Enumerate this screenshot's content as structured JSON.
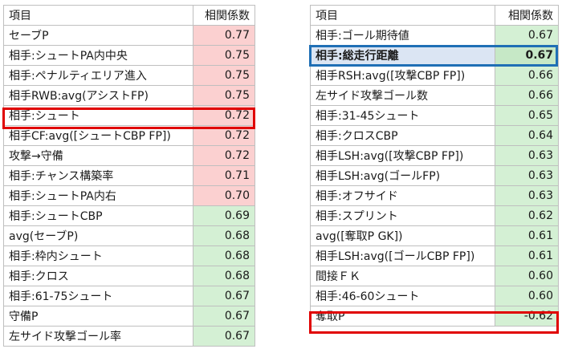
{
  "left_table": {
    "header": {
      "item": "項目",
      "value": "相関係数"
    },
    "rows": [
      {
        "label": "セーブP",
        "value": "0.77",
        "tone": "pos-hi"
      },
      {
        "label": "相手:シュートPA内中央",
        "value": "0.75",
        "tone": "pos-hi"
      },
      {
        "label": "相手:ペナルティエリア進入",
        "value": "0.75",
        "tone": "pos-hi"
      },
      {
        "label": "相手RWB:avg(アシストFP)",
        "value": "0.75",
        "tone": "pos-hi"
      },
      {
        "label": "相手:シュート",
        "value": "0.72",
        "tone": "pos-hi"
      },
      {
        "label": "相手CF:avg([シュートCBP FP])",
        "value": "0.72",
        "tone": "pos-hi"
      },
      {
        "label": "攻撃→守備",
        "value": "0.72",
        "tone": "pos-hi"
      },
      {
        "label": "相手:チャンス構築率",
        "value": "0.71",
        "tone": "pos-hi"
      },
      {
        "label": "相手:シュートPA内右",
        "value": "0.70",
        "tone": "pos-hi"
      },
      {
        "label": "相手:シュートCBP",
        "value": "0.69",
        "tone": "pos-lo"
      },
      {
        "label": "avg(セーブP)",
        "value": "0.68",
        "tone": "pos-lo"
      },
      {
        "label": "相手:枠内シュート",
        "value": "0.68",
        "tone": "pos-lo"
      },
      {
        "label": "相手:クロス",
        "value": "0.68",
        "tone": "pos-lo"
      },
      {
        "label": "相手:61-75シュート",
        "value": "0.67",
        "tone": "pos-lo"
      },
      {
        "label": "守備P",
        "value": "0.67",
        "tone": "pos-lo"
      },
      {
        "label": "左サイド攻撃ゴール率",
        "value": "0.67",
        "tone": "pos-lo"
      }
    ]
  },
  "right_table": {
    "header": {
      "item": "項目",
      "value": "相関係数"
    },
    "rows": [
      {
        "label": "相手:ゴール期待値",
        "value": "0.67",
        "tone": "pos-lo"
      },
      {
        "label": "相手:総走行距離",
        "value": "0.67",
        "tone": "pos-lo"
      },
      {
        "label": "相手RSH:avg([攻撃CBP FP])",
        "value": "0.66",
        "tone": "pos-lo"
      },
      {
        "label": "左サイド攻撃ゴール数",
        "value": "0.66",
        "tone": "pos-lo"
      },
      {
        "label": "相手:31-45シュート",
        "value": "0.65",
        "tone": "pos-lo"
      },
      {
        "label": "相手:クロスCBP",
        "value": "0.64",
        "tone": "pos-lo"
      },
      {
        "label": "相手LSH:avg([攻撃CBP FP])",
        "value": "0.63",
        "tone": "pos-lo"
      },
      {
        "label": "相手LSH:avg(ゴールFP)",
        "value": "0.63",
        "tone": "pos-lo"
      },
      {
        "label": "相手:オフサイド",
        "value": "0.63",
        "tone": "pos-lo"
      },
      {
        "label": "相手:スプリント",
        "value": "0.62",
        "tone": "pos-lo"
      },
      {
        "label": "avg([奪取P GK])",
        "value": "0.61",
        "tone": "pos-lo"
      },
      {
        "label": "相手LSH:avg([ゴールCBP FP])",
        "value": "0.61",
        "tone": "pos-lo"
      },
      {
        "label": "間接ＦＫ",
        "value": "0.60",
        "tone": "pos-lo"
      },
      {
        "label": "相手:46-60シュート",
        "value": "0.60",
        "tone": "pos-lo"
      },
      {
        "label": "奪取P",
        "value": "-0.62",
        "tone": "neg"
      }
    ]
  },
  "colors": {
    "positive_high_fill": "#fbd0d0",
    "positive_low_fill": "#d4f0d4",
    "negative_fill": "#d4f0d4",
    "highlight_red": "#e00000",
    "highlight_blue": "#1f6fb5",
    "highlight_blue_fill": "#dbe5f3"
  }
}
